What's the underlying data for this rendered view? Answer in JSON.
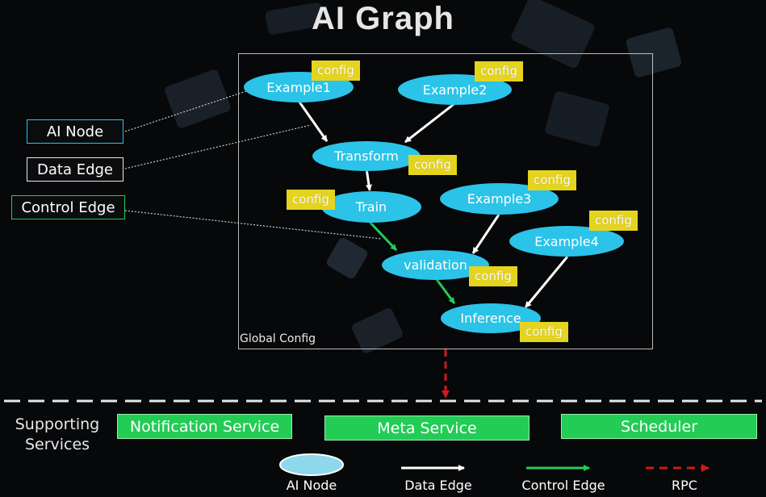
{
  "title": "AI Graph",
  "global_config_label": "Global Config",
  "nodes": {
    "example1": "Example1",
    "example2": "Example2",
    "transform": "Transform",
    "train": "Train",
    "example3": "Example3",
    "example4": "Example4",
    "validation": "validation",
    "inference": "Inference"
  },
  "config_label": "config",
  "callouts": {
    "ai_node": "AI Node",
    "data_edge": "Data Edge",
    "control_edge": "Control Edge"
  },
  "supporting_services": {
    "label_line1": "Supporting",
    "label_line2": "Services",
    "items": [
      "Notification Service",
      "Meta Service",
      "Scheduler"
    ]
  },
  "legend": {
    "ai_node": "AI Node",
    "data_edge": "Data Edge",
    "control_edge": "Control Edge",
    "rpc": "RPC"
  },
  "colors": {
    "node": "#2bc3e8",
    "config": "#e5d41e",
    "control_edge": "#22cc55",
    "rpc": "#cc1a1a",
    "service": "#22cc55"
  },
  "edges": [
    {
      "from": "example1",
      "to": "transform",
      "type": "data"
    },
    {
      "from": "example2",
      "to": "transform",
      "type": "data"
    },
    {
      "from": "transform",
      "to": "train",
      "type": "data"
    },
    {
      "from": "train",
      "to": "validation",
      "type": "control"
    },
    {
      "from": "example3",
      "to": "validation",
      "type": "data"
    },
    {
      "from": "validation",
      "to": "inference",
      "type": "control"
    },
    {
      "from": "example4",
      "to": "inference",
      "type": "data"
    }
  ]
}
